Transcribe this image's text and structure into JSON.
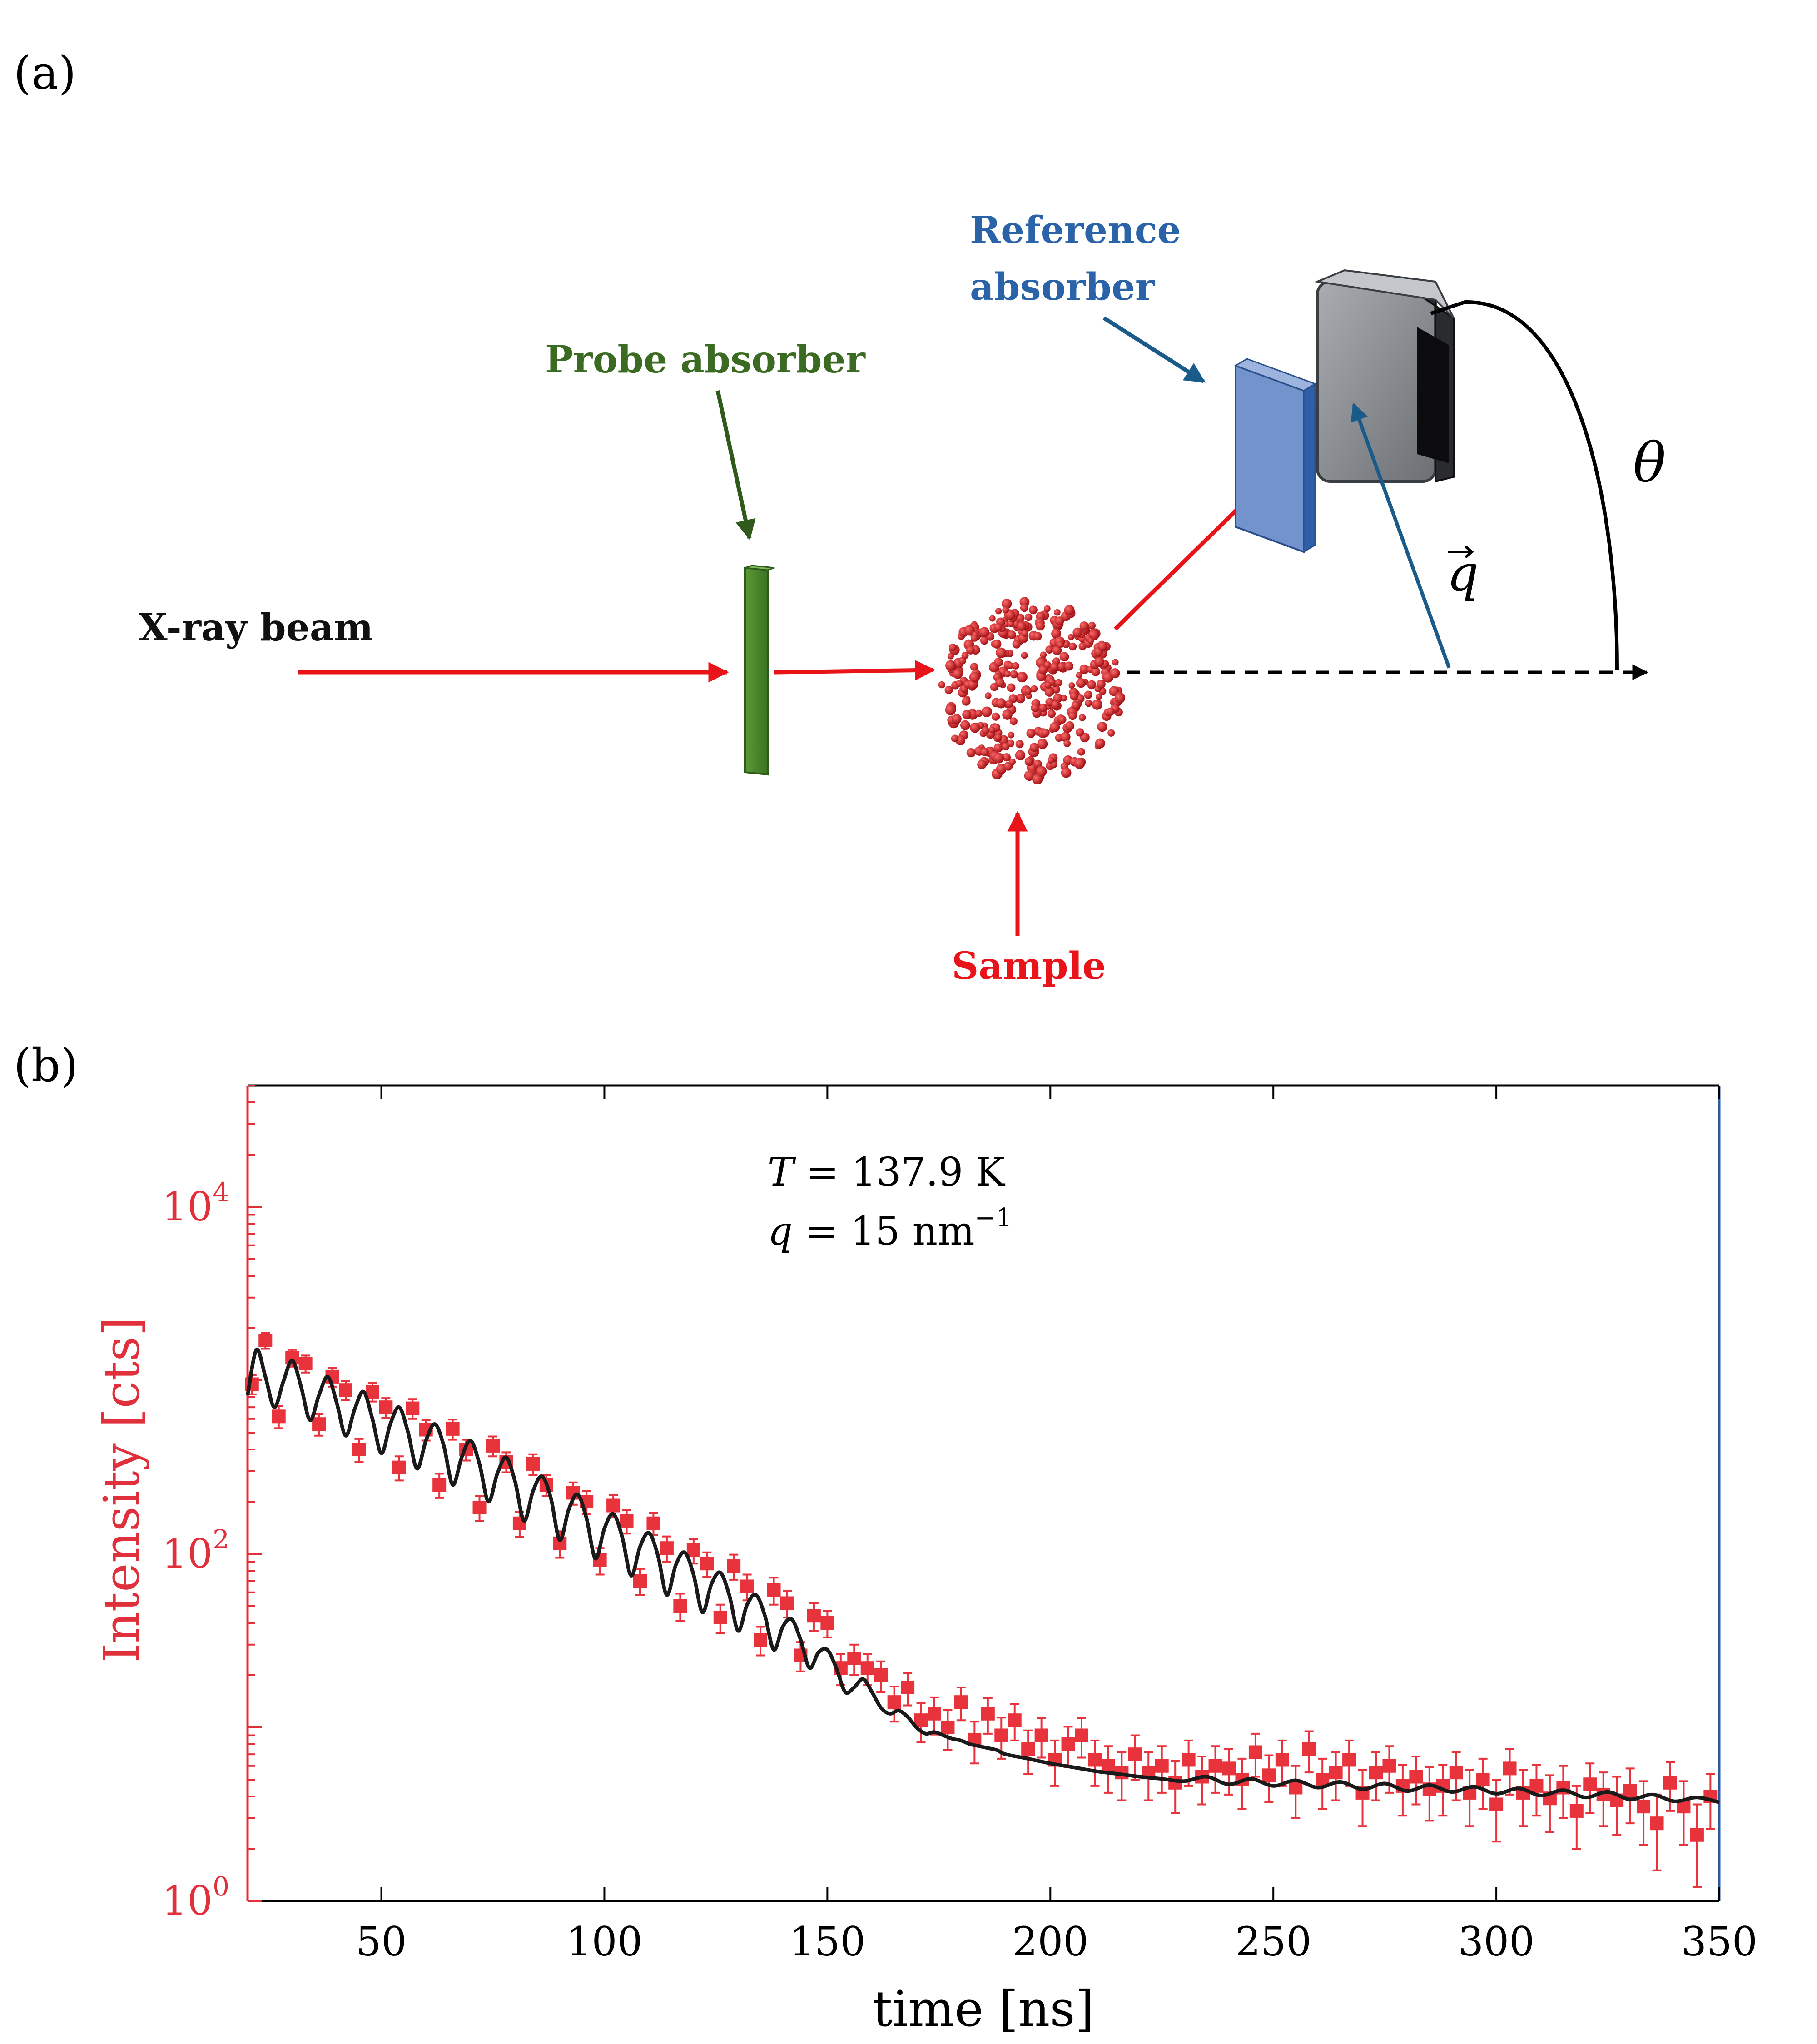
{
  "panel_a": {
    "label": "(a)",
    "labels": {
      "xray_beam": "X-ray beam",
      "probe_absorber": "Probe absorber",
      "reference_absorber_line1": "Reference",
      "reference_absorber_line2": "absorber",
      "sample": "Sample",
      "theta": "θ",
      "q_vector": "q"
    },
    "colors": {
      "beam": "#e8141a",
      "probe": "#3d7a22",
      "probe_label": "#3b6b22",
      "reference": "#6e8fc9",
      "reference_label": "#2a63a8",
      "sample_label": "#e8141a",
      "detector": "#8a8d91",
      "q_arrow": "#1a5b8a"
    }
  },
  "panel_b": {
    "label": "(b)",
    "annotation": {
      "line1_var": "T",
      "line1_rest": " = 137.9 K",
      "line2_var": "q",
      "line2_rest": " = 15 nm",
      "line2_sup": "−1"
    }
  },
  "chart_data": {
    "type": "scatter",
    "xlabel": "time [ns]",
    "ylabel": "Intensity [cts]",
    "xlim": [
      20,
      350
    ],
    "ylim": [
      1,
      50000
    ],
    "y_scale": "log",
    "x_ticks": [
      50,
      100,
      150,
      200,
      250,
      300,
      350
    ],
    "y_ticks": [
      {
        "value": 1,
        "base": "10",
        "exp": "0"
      },
      {
        "value": 100,
        "base": "10",
        "exp": "2"
      },
      {
        "value": 10000,
        "base": "10",
        "exp": "4"
      }
    ],
    "colors": {
      "data": "#e8323c",
      "fit": "#1a1a1a",
      "yaxis": "#e0303c",
      "right_axis": "#2a5aa0"
    },
    "series": [
      {
        "kind": "data_points",
        "x": [
          21,
          24,
          27,
          30,
          33,
          36,
          39,
          42,
          45,
          48,
          51,
          54,
          57,
          60,
          63,
          66,
          69,
          72,
          75,
          78,
          81,
          84,
          87,
          90,
          93,
          96,
          99,
          102,
          105,
          108,
          111,
          114,
          117,
          120,
          123,
          126,
          129,
          132,
          135,
          138,
          141,
          144,
          147,
          150,
          153,
          156,
          159,
          162,
          165,
          168,
          171,
          174,
          177,
          180,
          183,
          186,
          189,
          192,
          195,
          198,
          201,
          204,
          207,
          210,
          213,
          216,
          219,
          222,
          225,
          228,
          231,
          234,
          237,
          240,
          243,
          246,
          249,
          252,
          255,
          258,
          261,
          264,
          267,
          270,
          273,
          276,
          279,
          282,
          285,
          288,
          291,
          294,
          297,
          300,
          303,
          306,
          309,
          312,
          315,
          318,
          321,
          324,
          327,
          330,
          333,
          336,
          339,
          342,
          345,
          348
        ],
        "y": [
          950,
          1700,
          620,
          1350,
          1250,
          560,
          1050,
          880,
          400,
          860,
          700,
          315,
          690,
          520,
          250,
          525,
          400,
          185,
          420,
          340,
          150,
          330,
          250,
          115,
          225,
          200,
          92,
          190,
          155,
          70,
          150,
          108,
          50,
          105,
          88,
          43,
          85,
          65,
          32,
          62,
          52,
          26,
          44,
          40,
          22,
          25,
          22,
          20,
          14,
          17,
          11,
          12,
          10,
          14,
          8.5,
          12,
          9,
          11,
          7.5,
          9,
          6.5,
          8,
          9,
          6.5,
          6,
          5.5,
          7,
          5.5,
          6,
          4.8,
          6.5,
          5.2,
          6,
          5.8,
          5,
          7.2,
          5.3,
          6.5,
          4.5,
          7.5,
          5,
          5.5,
          6.5,
          4.2,
          5.5,
          6,
          4.6,
          5.2,
          4.4,
          4.6,
          5.5,
          4.2,
          5,
          3.6,
          5.8,
          4.2,
          4.6,
          3.9,
          4.5,
          3.3,
          4.7,
          4.1,
          3.8,
          4.3,
          3.5,
          2.8,
          4.8,
          3.5,
          2.4,
          4
        ],
        "err": [
          120,
          180,
          90,
          150,
          140,
          80,
          130,
          110,
          60,
          105,
          90,
          50,
          90,
          70,
          40,
          70,
          55,
          30,
          55,
          45,
          25,
          45,
          35,
          20,
          33,
          30,
          16,
          28,
          24,
          12,
          22,
          18,
          9,
          17,
          14,
          8,
          14,
          11,
          6,
          11,
          9,
          5,
          8,
          7,
          4.5,
          5,
          4.5,
          4,
          3.2,
          3.6,
          2.8,
          2.9,
          2.6,
          3,
          2.3,
          2.8,
          2.4,
          2.6,
          2.1,
          2.3,
          1.9,
          2.1,
          2.3,
          1.9,
          1.8,
          1.7,
          2,
          1.7,
          1.8,
          1.6,
          1.9,
          1.6,
          1.8,
          1.7,
          1.6,
          2,
          1.6,
          1.9,
          1.5,
          2,
          1.6,
          1.7,
          1.9,
          1.5,
          1.7,
          1.8,
          1.5,
          1.6,
          1.5,
          1.5,
          1.7,
          1.5,
          1.6,
          1.4,
          1.7,
          1.5,
          1.5,
          1.4,
          1.5,
          1.3,
          1.5,
          1.4,
          1.4,
          1.5,
          1.4,
          1.3,
          1.5,
          1.4,
          1.2,
          1.4
        ]
      },
      {
        "kind": "fit_curve",
        "x": [
          20,
          22,
          24,
          26,
          28,
          30,
          32,
          34,
          36,
          38,
          40,
          42,
          44,
          46,
          48,
          50,
          52,
          54,
          56,
          58,
          60,
          62,
          64,
          66,
          68,
          70,
          72,
          74,
          76,
          78,
          80,
          82,
          84,
          86,
          88,
          90,
          92,
          94,
          96,
          98,
          100,
          102,
          104,
          106,
          108,
          110,
          112,
          114,
          116,
          118,
          120,
          122,
          124,
          126,
          128,
          130,
          132,
          134,
          136,
          138,
          140,
          142,
          144,
          146,
          148,
          150,
          152,
          154,
          156,
          158,
          160,
          162,
          164,
          166,
          168,
          170,
          172,
          174,
          176,
          178,
          180,
          182,
          184,
          186,
          188,
          190,
          195,
          200,
          205,
          210,
          215,
          220,
          225,
          230,
          235,
          240,
          245,
          250,
          255,
          260,
          265,
          270,
          275,
          280,
          285,
          290,
          295,
          300,
          305,
          310,
          315,
          320,
          325,
          330,
          335,
          340,
          345,
          350
        ],
        "y": [
          820,
          1500,
          1050,
          700,
          980,
          1300,
          920,
          590,
          820,
          1050,
          740,
          480,
          680,
          860,
          600,
          380,
          560,
          700,
          500,
          310,
          450,
          560,
          420,
          250,
          360,
          450,
          330,
          200,
          290,
          360,
          260,
          155,
          230,
          280,
          210,
          120,
          180,
          220,
          160,
          94,
          140,
          170,
          125,
          75,
          110,
          132,
          98,
          58,
          86,
          102,
          76,
          46,
          67,
          78,
          58,
          36,
          51,
          58,
          44,
          28,
          38,
          42,
          32,
          22,
          27,
          28,
          22,
          16,
          17,
          19,
          16,
          13,
          12,
          12.5,
          11.5,
          10,
          9.2,
          9.4,
          9,
          8.6,
          8.4,
          8,
          7.8,
          7.6,
          7.4,
          7,
          6.6,
          6.2,
          5.9,
          5.6,
          5.4,
          5.2,
          5.05,
          4.9,
          5.2,
          4.7,
          5.05,
          4.6,
          4.95,
          4.5,
          4.85,
          4.4,
          4.75,
          4.3,
          4.65,
          4.25,
          4.55,
          4.15,
          4.45,
          4.05,
          4.35,
          3.95,
          4.25,
          3.85,
          4.1,
          3.75,
          3.95,
          3.7
        ]
      }
    ]
  }
}
